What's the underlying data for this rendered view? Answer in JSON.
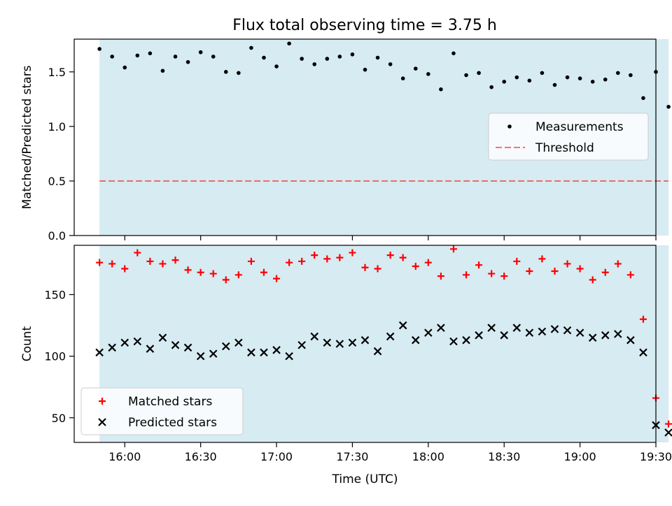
{
  "figure_title": "Flux total observing time = 3.75 h",
  "colors": {
    "band": "#add8e6",
    "measurement": "#000000",
    "threshold": "#ff0000",
    "matched": "#ff0000",
    "predicted": "#000000"
  },
  "chart_data": [
    {
      "type": "scatter",
      "ylabel": "Matched/Predicted stars",
      "ylim": [
        0.0,
        1.8
      ],
      "yticks": [
        0.0,
        0.5,
        1.0,
        1.5
      ],
      "ytick_labels": [
        "0.0",
        "0.5",
        "1.0",
        "1.5"
      ],
      "xlim_minutes": [
        -10,
        220
      ],
      "observing_window_minutes": [
        0,
        225
      ],
      "legend": {
        "placement": "center-right",
        "entries": [
          "Measurements",
          "Threshold"
        ]
      },
      "threshold": {
        "name": "Threshold",
        "value": 0.5
      },
      "series": [
        {
          "name": "Measurements",
          "x_minutes": [
            0,
            5,
            10,
            15,
            20,
            25,
            30,
            35,
            40,
            45,
            50,
            55,
            60,
            65,
            70,
            75,
            80,
            85,
            90,
            95,
            100,
            105,
            110,
            115,
            120,
            125,
            130,
            135,
            140,
            145,
            150,
            155,
            160,
            165,
            170,
            175,
            180,
            185,
            190,
            195,
            200,
            205,
            210,
            215,
            220,
            225
          ],
          "values": [
            1.71,
            1.64,
            1.54,
            1.65,
            1.67,
            1.51,
            1.64,
            1.59,
            1.68,
            1.64,
            1.5,
            1.49,
            1.72,
            1.63,
            1.55,
            1.76,
            1.62,
            1.57,
            1.62,
            1.64,
            1.66,
            1.52,
            1.63,
            1.57,
            1.44,
            1.53,
            1.48,
            1.34,
            1.67,
            1.47,
            1.49,
            1.36,
            1.41,
            1.45,
            1.42,
            1.49,
            1.38,
            1.45,
            1.44,
            1.41,
            1.43,
            1.49,
            1.47,
            1.26,
            1.5,
            1.18
          ]
        }
      ]
    },
    {
      "type": "scatter",
      "xlabel": "Time (UTC)",
      "ylabel": "Count",
      "ylim": [
        30,
        190
      ],
      "yticks": [
        50,
        100,
        150
      ],
      "ytick_labels": [
        "50",
        "100",
        "150"
      ],
      "xlim_minutes": [
        -10,
        220
      ],
      "x_origin": "15:50",
      "xticks_minutes": [
        10,
        40,
        70,
        100,
        130,
        160,
        190,
        220
      ],
      "xtick_labels": [
        "16:00",
        "16:30",
        "17:00",
        "17:30",
        "18:00",
        "18:30",
        "19:00",
        "19:30"
      ],
      "legend": {
        "placement": "lower-left",
        "entries": [
          "Matched stars",
          "Predicted stars"
        ]
      },
      "series": [
        {
          "name": "Matched stars",
          "marker": "plus",
          "x_minutes": [
            0,
            5,
            10,
            15,
            20,
            25,
            30,
            35,
            40,
            45,
            50,
            55,
            60,
            65,
            70,
            75,
            80,
            85,
            90,
            95,
            100,
            105,
            110,
            115,
            120,
            125,
            130,
            135,
            140,
            145,
            150,
            155,
            160,
            165,
            170,
            175,
            180,
            185,
            190,
            195,
            200,
            205,
            210,
            215,
            220,
            225
          ],
          "values": [
            176,
            175,
            171,
            184,
            177,
            175,
            178,
            170,
            168,
            167,
            162,
            166,
            177,
            168,
            163,
            176,
            177,
            182,
            179,
            180,
            184,
            172,
            171,
            182,
            180,
            173,
            176,
            165,
            187,
            166,
            174,
            167,
            165,
            177,
            169,
            179,
            169,
            175,
            171,
            162,
            168,
            175,
            166,
            130,
            66,
            45
          ]
        },
        {
          "name": "Predicted stars",
          "marker": "x",
          "x_minutes": [
            0,
            5,
            10,
            15,
            20,
            25,
            30,
            35,
            40,
            45,
            50,
            55,
            60,
            65,
            70,
            75,
            80,
            85,
            90,
            95,
            100,
            105,
            110,
            115,
            120,
            125,
            130,
            135,
            140,
            145,
            150,
            155,
            160,
            165,
            170,
            175,
            180,
            185,
            190,
            195,
            200,
            205,
            210,
            215,
            220,
            225
          ],
          "values": [
            103,
            107,
            111,
            112,
            106,
            115,
            109,
            107,
            100,
            102,
            108,
            111,
            103,
            103,
            105,
            100,
            109,
            116,
            111,
            110,
            111,
            113,
            104,
            116,
            125,
            113,
            119,
            123,
            112,
            113,
            117,
            123,
            117,
            123,
            119,
            120,
            122,
            121,
            119,
            115,
            117,
            118,
            113,
            103,
            44,
            38
          ]
        }
      ]
    }
  ]
}
